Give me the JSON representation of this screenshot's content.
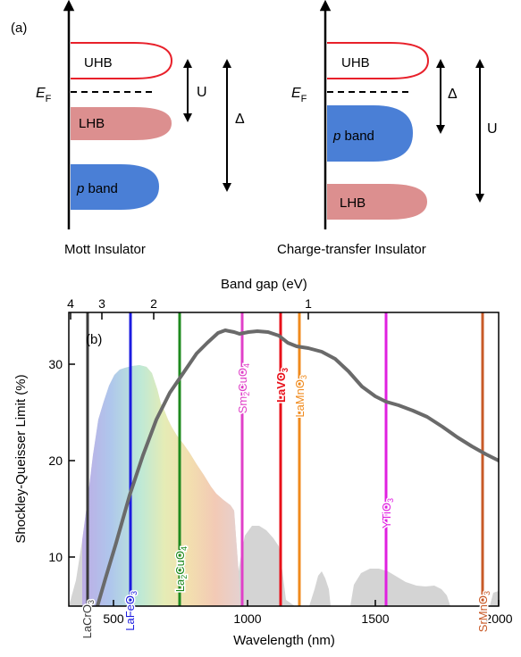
{
  "panel_a": {
    "label": "(a)",
    "mott": {
      "caption": "Mott Insulator",
      "uhb": "UHB",
      "lhb": "LHB",
      "p_italic": "p",
      "p_rest": " band",
      "ef_main": "E",
      "ef_sub": "F",
      "u": "U",
      "delta": "Δ"
    },
    "ct": {
      "caption": "Charge-transfer Insulator",
      "uhb": "UHB",
      "lhb": "LHB",
      "p_italic": "p",
      "p_rest": " band",
      "ef_main": "E",
      "ef_sub": "F",
      "u": "U",
      "delta": "Δ"
    },
    "colors": {
      "uhb_outline": "#e8202a",
      "lhb_fill": "#dc8f8f",
      "p_fill": "#4a7fd6"
    }
  },
  "panel_b": {
    "label": "(b)",
    "top_axis_title": "Band gap  (eV)",
    "top_ticks": [
      "4",
      "3",
      "2",
      "1"
    ],
    "xlabel": "Wavelength  (nm)",
    "ylabel": "Shockley-Queisser Limit  (%)",
    "x_ticks": [
      "500",
      "1000",
      "1500",
      "2000"
    ],
    "y_ticks": [
      "10",
      "20",
      "30"
    ],
    "materials": [
      {
        "main": "LaCrO",
        "sub": "3",
        "color": "#3a3a3a"
      },
      {
        "main": "LaFeO",
        "sub": "3",
        "color": "#1c1ce0"
      },
      {
        "main": "La",
        "sub": "2",
        "main2": "CuO",
        "sub2": "4",
        "color": "#1e8a1e"
      },
      {
        "main": "Sm",
        "sub": "2",
        "main2": "CuO",
        "sub2": "4",
        "color": "#e040c8"
      },
      {
        "main": "LaVO",
        "sub": "3",
        "color": "#e8101a"
      },
      {
        "main": "LaMnO",
        "sub": "3",
        "color": "#f08a1c"
      },
      {
        "main": "YTiO",
        "sub": "3",
        "color": "#e020e0"
      },
      {
        "main": "SrMnO",
        "sub": "3",
        "color": "#c85a28"
      }
    ]
  }
}
